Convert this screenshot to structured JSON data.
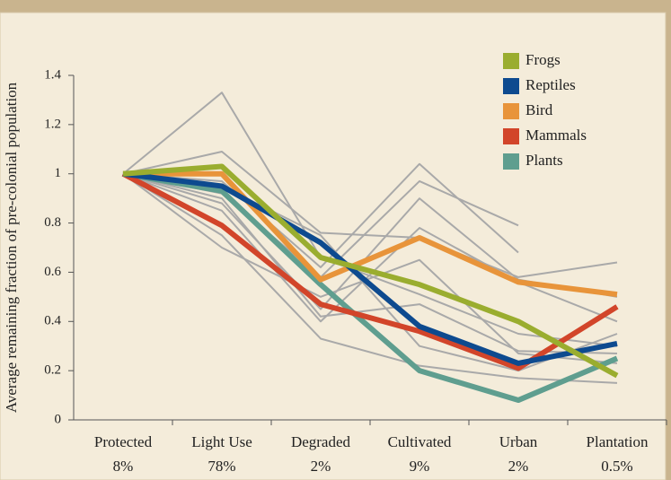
{
  "chart_data": {
    "type": "line",
    "y_label": "Average remaining fraction of pre-colonial population",
    "categories": [
      "Protected",
      "Light Use",
      "Degraded",
      "Cultivated",
      "Urban",
      "Plantation"
    ],
    "shares": [
      8,
      78,
      2,
      9,
      2,
      0.5
    ],
    "share_labels": [
      "8%",
      "78%",
      "2%",
      "9%",
      "2%",
      "0.5%"
    ],
    "ylim": [
      0,
      1.4
    ],
    "yticks": [
      0,
      0.2,
      0.4,
      0.6,
      0.8,
      1,
      1.2,
      1.4
    ],
    "legend": "top-right",
    "background_series": [
      {
        "color": "#a9a9a9",
        "values": [
          1,
          1.33,
          0.66,
          0.51,
          0.35,
          0.3
        ]
      },
      {
        "color": "#a9a9a9",
        "values": [
          1,
          1.09,
          0.76,
          0.74,
          0.58,
          0.64
        ]
      },
      {
        "color": "#a9a9a9",
        "values": [
          1,
          0.97,
          0.62,
          1.04,
          0.68,
          null
        ]
      },
      {
        "color": "#a9a9a9",
        "values": [
          1,
          0.92,
          0.58,
          0.97,
          0.79,
          null
        ]
      },
      {
        "color": "#a9a9a9",
        "values": [
          1,
          0.88,
          0.45,
          0.9,
          0.57,
          0.5
        ]
      },
      {
        "color": "#a9a9a9",
        "values": [
          1,
          0.85,
          0.4,
          0.78,
          0.56,
          0.4
        ]
      },
      {
        "color": "#a9a9a9",
        "values": [
          1,
          0.75,
          0.33,
          0.22,
          0.17,
          0.15
        ]
      },
      {
        "color": "#a9a9a9",
        "values": [
          1,
          0.7,
          0.5,
          0.65,
          0.27,
          0.23
        ]
      },
      {
        "color": "#a9a9a9",
        "values": [
          1,
          0.9,
          0.42,
          0.47,
          0.28,
          0.27
        ]
      },
      {
        "color": "#a9a9a9",
        "values": [
          1,
          0.95,
          0.75,
          0.3,
          0.2,
          0.35
        ]
      }
    ],
    "series": [
      {
        "name": "Frogs",
        "color": "#9aad2f",
        "values": [
          1,
          1.03,
          0.66,
          0.55,
          0.4,
          0.18
        ]
      },
      {
        "name": "Reptiles",
        "color": "#0d4a8f",
        "values": [
          1,
          0.95,
          0.72,
          0.38,
          0.23,
          0.31
        ]
      },
      {
        "name": "Bird",
        "color": "#e8943a",
        "values": [
          1,
          1.0,
          0.57,
          0.74,
          0.56,
          0.51
        ]
      },
      {
        "name": "Mammals",
        "color": "#d2452a",
        "values": [
          1,
          0.79,
          0.47,
          0.36,
          0.21,
          0.46
        ]
      },
      {
        "name": "Plants",
        "color": "#5f9e8f",
        "values": [
          1,
          0.93,
          0.55,
          0.2,
          0.08,
          0.25
        ]
      }
    ]
  }
}
